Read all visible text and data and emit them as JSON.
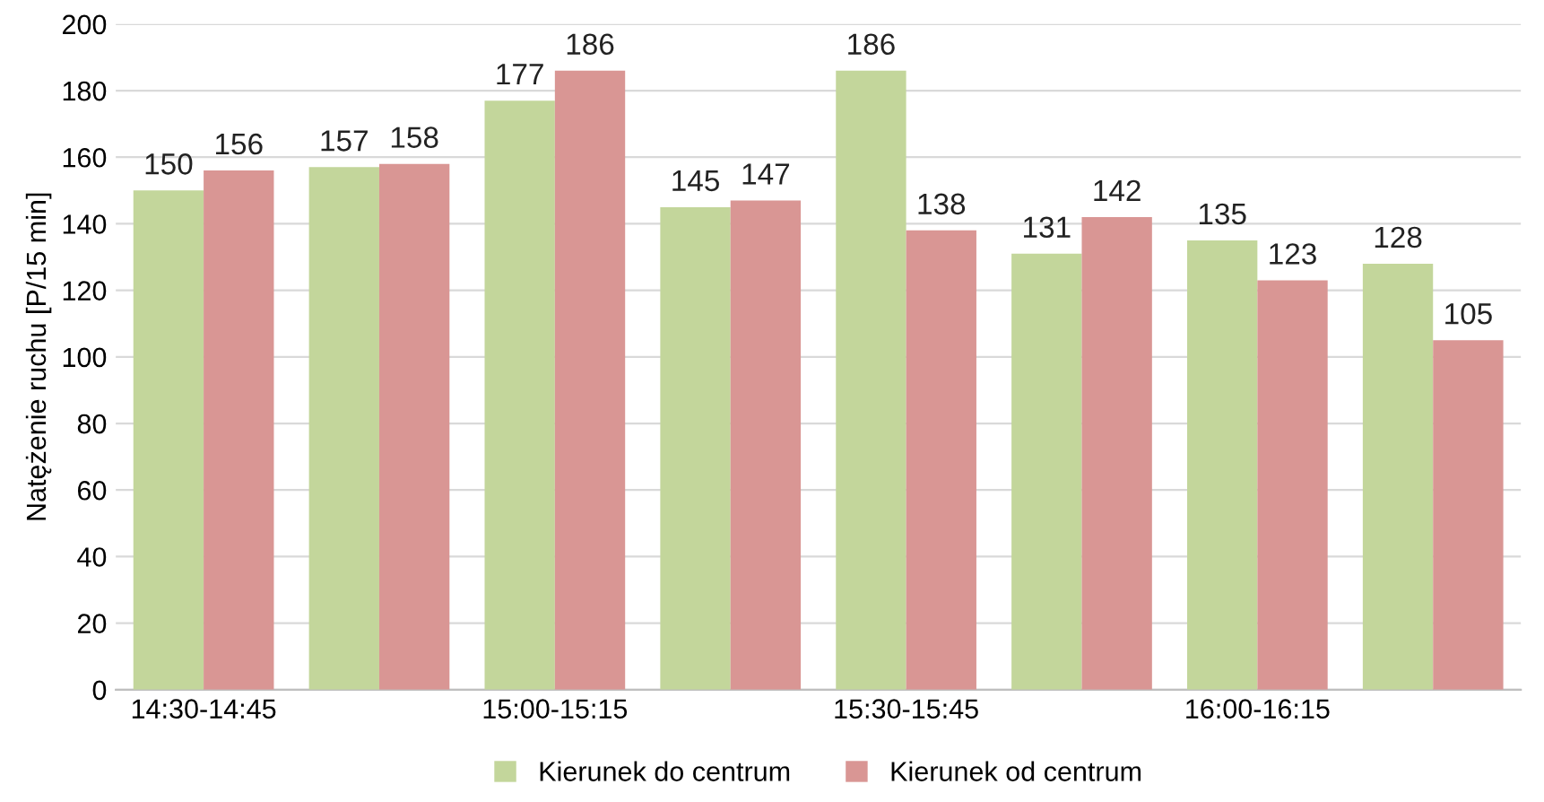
{
  "chart_data": {
    "type": "bar",
    "ylabel": "Natężenie ruchu [P/15 min]",
    "categories": [
      "14:30-14:45",
      null,
      "15:00-15:15",
      null,
      "15:30-15:45",
      null,
      "16:00-16:15",
      null
    ],
    "series": [
      {
        "name": "Kierunek do centrum",
        "color": "#c3d69b",
        "values": [
          150,
          157,
          177,
          145,
          186,
          131,
          135,
          128
        ]
      },
      {
        "name": "Kierunek od centrum",
        "color": "#d99694",
        "values": [
          156,
          158,
          186,
          147,
          138,
          142,
          123,
          105
        ]
      }
    ],
    "ylim": [
      0,
      200
    ],
    "yticks": [
      0,
      20,
      40,
      60,
      80,
      100,
      120,
      140,
      160,
      180,
      200
    ],
    "grid": "y",
    "legend": "bottom",
    "data_labels": true
  }
}
